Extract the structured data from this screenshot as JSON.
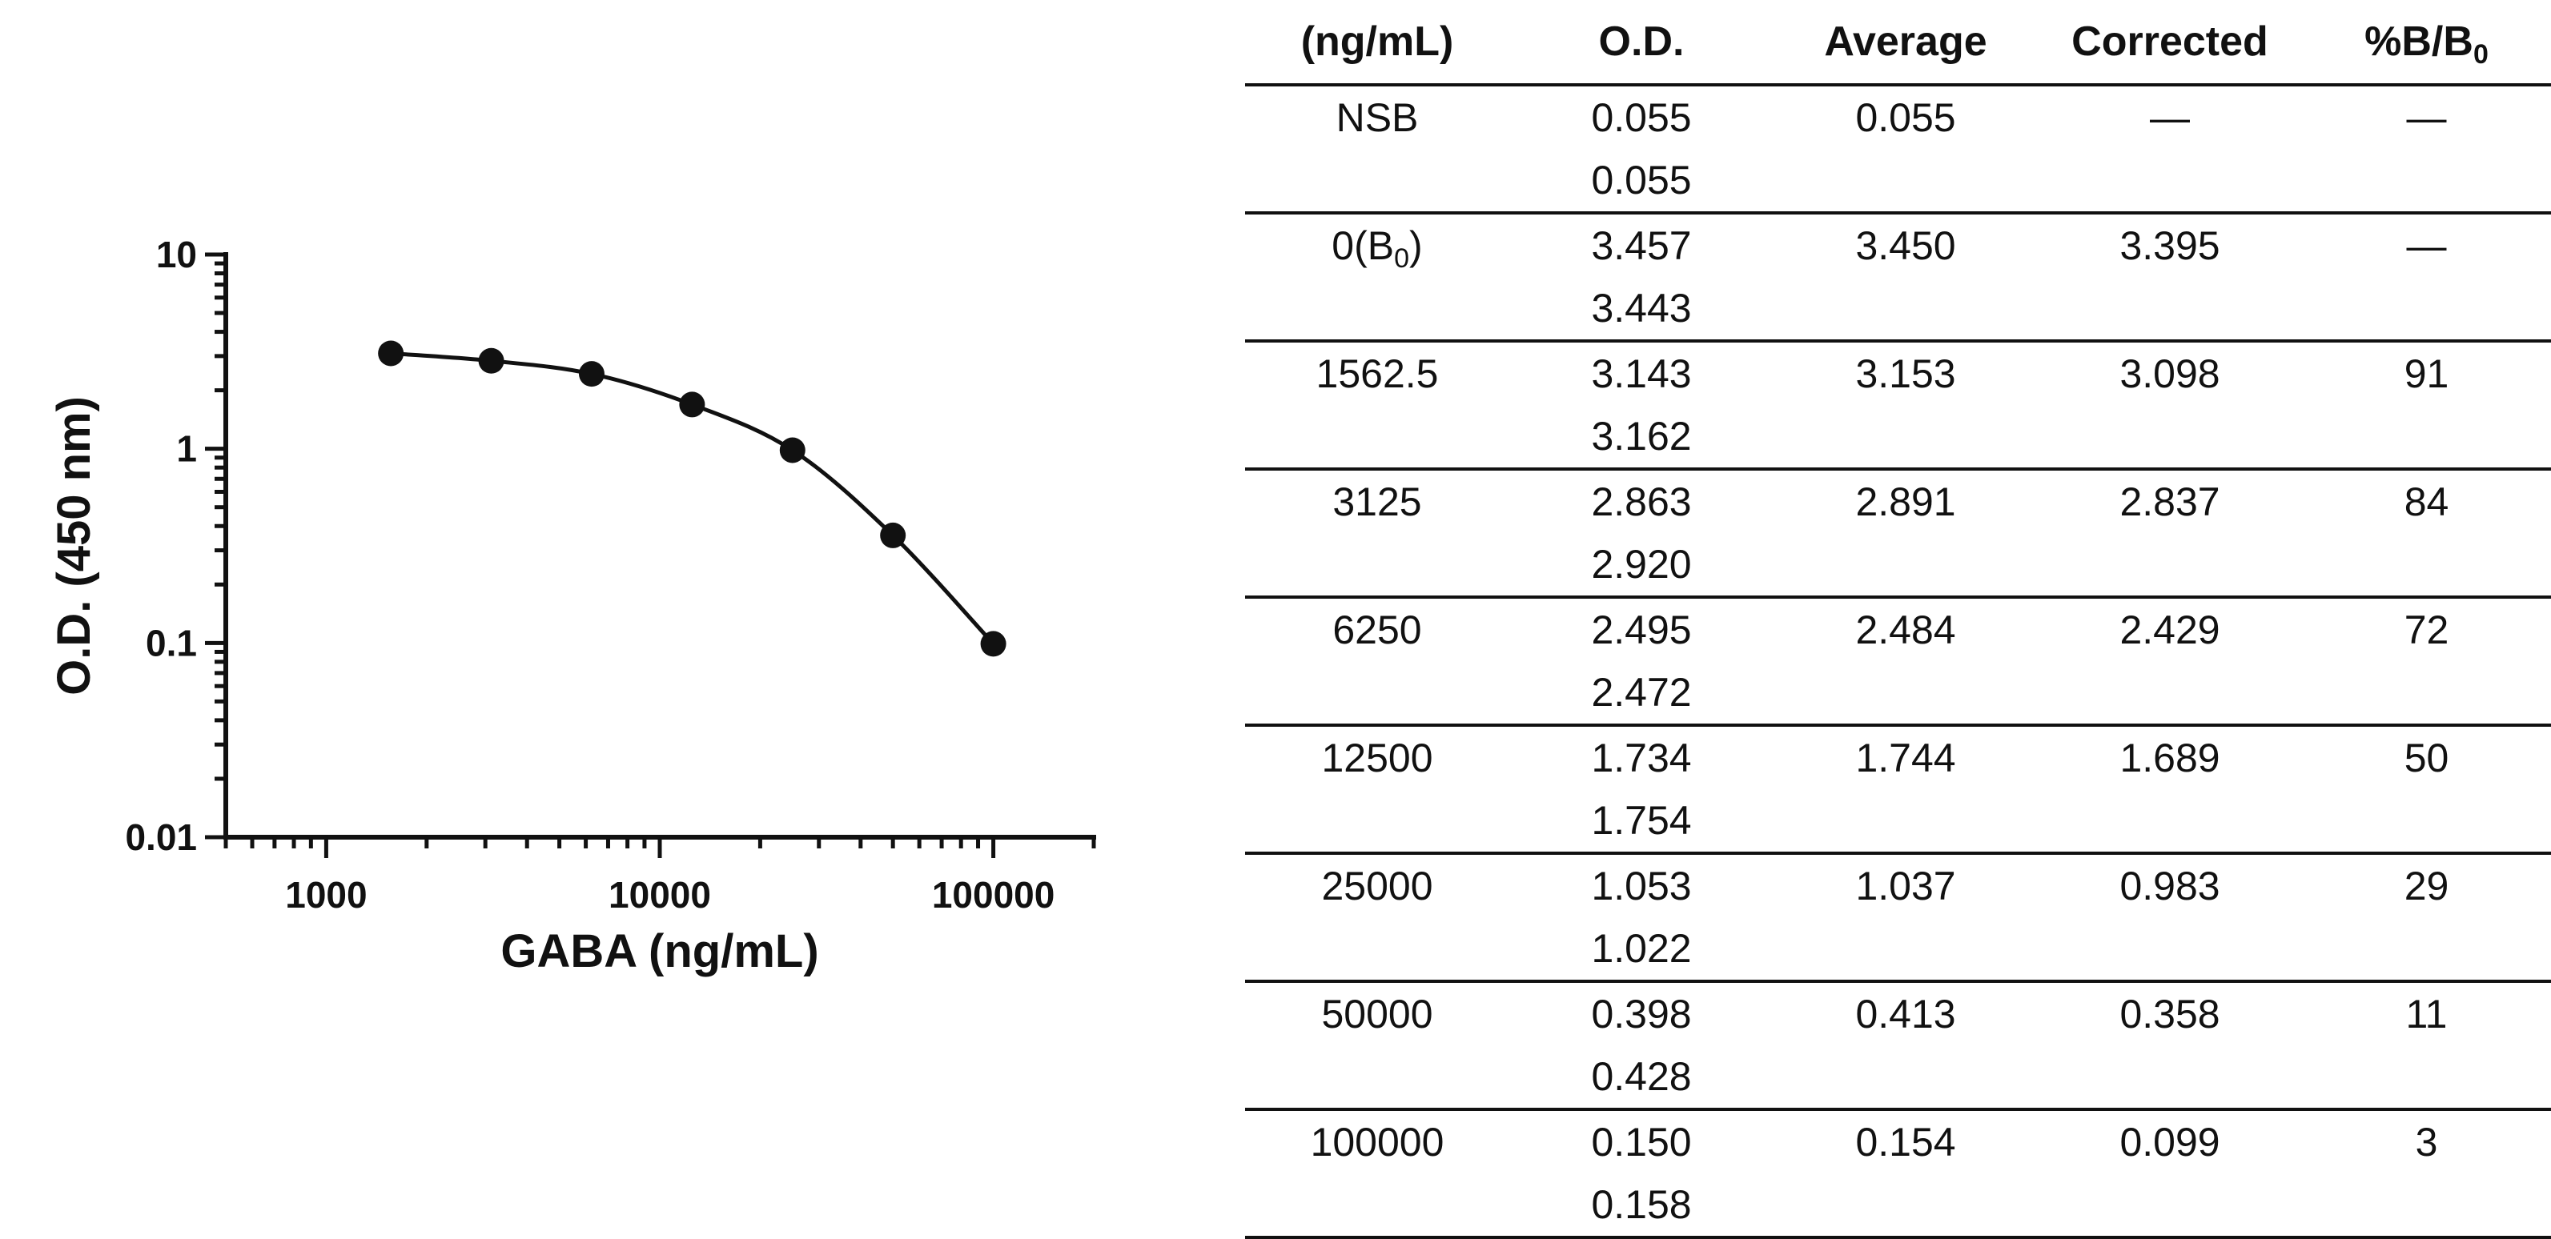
{
  "chart_data": {
    "type": "scatter",
    "xlabel": "GABA (ng/mL)",
    "ylabel": "O.D. (450 nm)",
    "x_scale": "log",
    "y_scale": "log",
    "xlim": [
      500,
      200000
    ],
    "ylim": [
      0.01,
      10
    ],
    "x_ticks": [
      1000,
      10000,
      100000
    ],
    "x_tick_labels": [
      "1000",
      "10000",
      "100000"
    ],
    "y_ticks": [
      0.01,
      0.1,
      1,
      10
    ],
    "y_tick_labels": [
      "0.01",
      "0.1",
      "1",
      "10"
    ],
    "grid": false,
    "legend": "none",
    "series": [
      {
        "x": [
          1562.5,
          3125,
          6250,
          12500,
          25000,
          50000,
          100000
        ],
        "y": [
          3.098,
          2.837,
          2.429,
          1.689,
          0.983,
          0.358,
          0.099
        ],
        "fit_curve": true,
        "color": "#111111"
      }
    ]
  },
  "table": {
    "headers": [
      "(ng/mL)",
      "O.D.",
      "Average",
      "Corrected",
      "%B/B",
      "0"
    ],
    "rows": [
      {
        "conc": "NSB",
        "conc_sub": "",
        "conc_suffix": "",
        "od1": "0.055",
        "od2": "0.055",
        "average": "0.055",
        "corrected": "—",
        "pct": "—"
      },
      {
        "conc": "0(B",
        "conc_sub": "0",
        "conc_suffix": ")",
        "od1": "3.457",
        "od2": "3.443",
        "average": "3.450",
        "corrected": "3.395",
        "pct": "—"
      },
      {
        "conc": "1562.5",
        "conc_sub": "",
        "conc_suffix": "",
        "od1": "3.143",
        "od2": "3.162",
        "average": "3.153",
        "corrected": "3.098",
        "pct": "91"
      },
      {
        "conc": "3125",
        "conc_sub": "",
        "conc_suffix": "",
        "od1": "2.863",
        "od2": "2.920",
        "average": "2.891",
        "corrected": "2.837",
        "pct": "84"
      },
      {
        "conc": "6250",
        "conc_sub": "",
        "conc_suffix": "",
        "od1": "2.495",
        "od2": "2.472",
        "average": "2.484",
        "corrected": "2.429",
        "pct": "72"
      },
      {
        "conc": "12500",
        "conc_sub": "",
        "conc_suffix": "",
        "od1": "1.734",
        "od2": "1.754",
        "average": "1.744",
        "corrected": "1.689",
        "pct": "50"
      },
      {
        "conc": "25000",
        "conc_sub": "",
        "conc_suffix": "",
        "od1": "1.053",
        "od2": "1.022",
        "average": "1.037",
        "corrected": "0.983",
        "pct": "29"
      },
      {
        "conc": "50000",
        "conc_sub": "",
        "conc_suffix": "",
        "od1": "0.398",
        "od2": "0.428",
        "average": "0.413",
        "corrected": "0.358",
        "pct": "11"
      },
      {
        "conc": "100000",
        "conc_sub": "",
        "conc_suffix": "",
        "od1": "0.150",
        "od2": "0.158",
        "average": "0.154",
        "corrected": "0.099",
        "pct": "3"
      }
    ]
  }
}
